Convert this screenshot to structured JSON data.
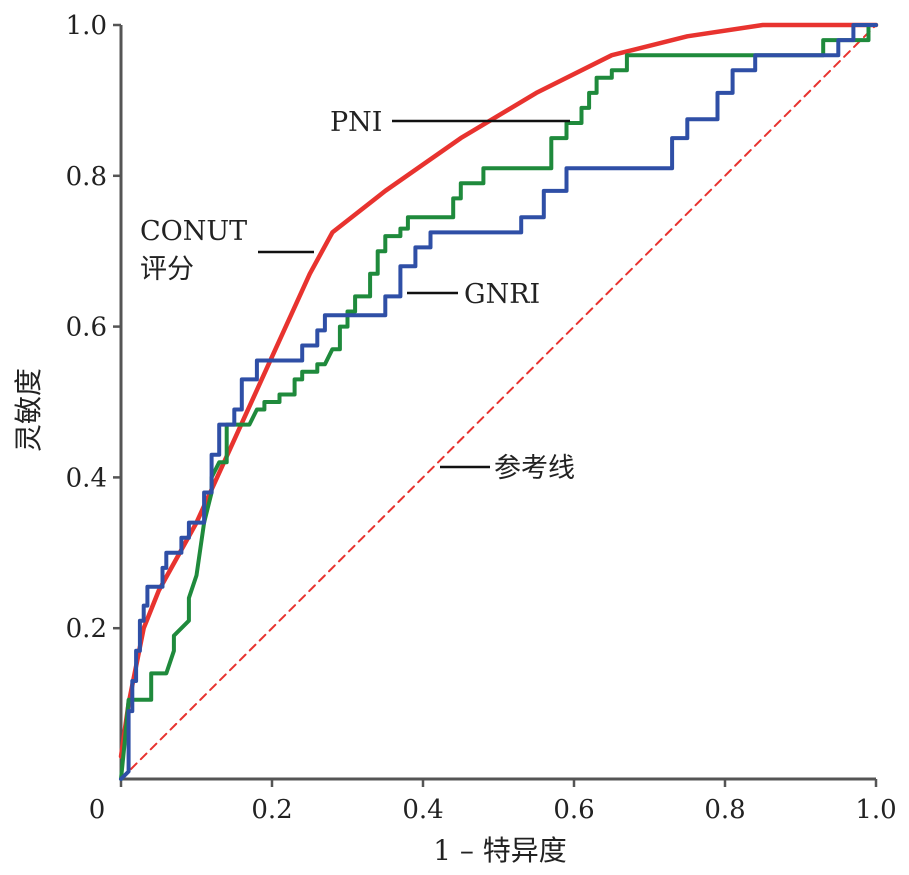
{
  "chart_data": {
    "type": "line",
    "title": "",
    "xlabel": "1 – 特异度",
    "ylabel": "灵敏度",
    "xlim": [
      0,
      1
    ],
    "ylim": [
      0,
      1
    ],
    "x_ticks": [
      "0",
      "0.2",
      "0.4",
      "0.6",
      "0.8",
      "1.0"
    ],
    "y_ticks": [
      "0.2",
      "0.4",
      "0.6",
      "0.8",
      "1.0"
    ],
    "grid": false,
    "series": [
      {
        "name": "CONUT\n评分",
        "color": "#e8332f",
        "style": "solid",
        "points": [
          [
            0,
            0.03
          ],
          [
            0.01,
            0.1
          ],
          [
            0.03,
            0.2
          ],
          [
            0.05,
            0.25
          ],
          [
            0.1,
            0.34
          ],
          [
            0.15,
            0.45
          ],
          [
            0.2,
            0.56
          ],
          [
            0.25,
            0.67
          ],
          [
            0.28,
            0.725
          ],
          [
            0.35,
            0.78
          ],
          [
            0.45,
            0.85
          ],
          [
            0.55,
            0.91
          ],
          [
            0.65,
            0.96
          ],
          [
            0.75,
            0.985
          ],
          [
            0.85,
            1.0
          ],
          [
            1.0,
            1.0
          ]
        ]
      },
      {
        "name": "PNI",
        "color": "#1f8a3c",
        "style": "solid",
        "points": [
          [
            0,
            0.0
          ],
          [
            0.005,
            0.05
          ],
          [
            0.01,
            0.105
          ],
          [
            0.04,
            0.105
          ],
          [
            0.04,
            0.14
          ],
          [
            0.06,
            0.14
          ],
          [
            0.07,
            0.17
          ],
          [
            0.07,
            0.19
          ],
          [
            0.09,
            0.21
          ],
          [
            0.09,
            0.24
          ],
          [
            0.1,
            0.27
          ],
          [
            0.11,
            0.34
          ],
          [
            0.12,
            0.38
          ],
          [
            0.12,
            0.4
          ],
          [
            0.13,
            0.42
          ],
          [
            0.14,
            0.42
          ],
          [
            0.14,
            0.47
          ],
          [
            0.17,
            0.47
          ],
          [
            0.18,
            0.49
          ],
          [
            0.19,
            0.49
          ],
          [
            0.19,
            0.5
          ],
          [
            0.21,
            0.5
          ],
          [
            0.21,
            0.51
          ],
          [
            0.23,
            0.51
          ],
          [
            0.23,
            0.53
          ],
          [
            0.24,
            0.53
          ],
          [
            0.24,
            0.54
          ],
          [
            0.26,
            0.54
          ],
          [
            0.26,
            0.55
          ],
          [
            0.27,
            0.55
          ],
          [
            0.28,
            0.57
          ],
          [
            0.29,
            0.57
          ],
          [
            0.29,
            0.6
          ],
          [
            0.3,
            0.6
          ],
          [
            0.3,
            0.62
          ],
          [
            0.31,
            0.62
          ],
          [
            0.31,
            0.64
          ],
          [
            0.33,
            0.64
          ],
          [
            0.33,
            0.67
          ],
          [
            0.34,
            0.67
          ],
          [
            0.34,
            0.7
          ],
          [
            0.35,
            0.7
          ],
          [
            0.35,
            0.72
          ],
          [
            0.37,
            0.72
          ],
          [
            0.37,
            0.73
          ],
          [
            0.38,
            0.73
          ],
          [
            0.38,
            0.745
          ],
          [
            0.44,
            0.745
          ],
          [
            0.44,
            0.77
          ],
          [
            0.45,
            0.77
          ],
          [
            0.45,
            0.79
          ],
          [
            0.48,
            0.79
          ],
          [
            0.48,
            0.81
          ],
          [
            0.57,
            0.81
          ],
          [
            0.57,
            0.85
          ],
          [
            0.59,
            0.85
          ],
          [
            0.59,
            0.87
          ],
          [
            0.61,
            0.87
          ],
          [
            0.61,
            0.89
          ],
          [
            0.62,
            0.89
          ],
          [
            0.62,
            0.91
          ],
          [
            0.63,
            0.91
          ],
          [
            0.63,
            0.93
          ],
          [
            0.65,
            0.93
          ],
          [
            0.65,
            0.94
          ],
          [
            0.67,
            0.94
          ],
          [
            0.67,
            0.96
          ],
          [
            0.75,
            0.96
          ],
          [
            0.93,
            0.96
          ],
          [
            0.93,
            0.98
          ],
          [
            0.99,
            0.98
          ],
          [
            0.99,
            1.0
          ],
          [
            1.0,
            1.0
          ]
        ]
      },
      {
        "name": "GNRI",
        "color": "#2f4fa6",
        "style": "solid",
        "points": [
          [
            0,
            0.0
          ],
          [
            0.01,
            0.01
          ],
          [
            0.01,
            0.09
          ],
          [
            0.015,
            0.09
          ],
          [
            0.015,
            0.13
          ],
          [
            0.02,
            0.13
          ],
          [
            0.02,
            0.17
          ],
          [
            0.025,
            0.17
          ],
          [
            0.025,
            0.21
          ],
          [
            0.03,
            0.21
          ],
          [
            0.03,
            0.23
          ],
          [
            0.035,
            0.23
          ],
          [
            0.035,
            0.255
          ],
          [
            0.055,
            0.255
          ],
          [
            0.055,
            0.28
          ],
          [
            0.06,
            0.28
          ],
          [
            0.06,
            0.3
          ],
          [
            0.08,
            0.3
          ],
          [
            0.08,
            0.32
          ],
          [
            0.09,
            0.32
          ],
          [
            0.09,
            0.34
          ],
          [
            0.11,
            0.34
          ],
          [
            0.11,
            0.38
          ],
          [
            0.12,
            0.38
          ],
          [
            0.12,
            0.43
          ],
          [
            0.13,
            0.43
          ],
          [
            0.13,
            0.47
          ],
          [
            0.15,
            0.47
          ],
          [
            0.15,
            0.49
          ],
          [
            0.16,
            0.49
          ],
          [
            0.16,
            0.53
          ],
          [
            0.18,
            0.53
          ],
          [
            0.18,
            0.555
          ],
          [
            0.24,
            0.555
          ],
          [
            0.24,
            0.575
          ],
          [
            0.26,
            0.575
          ],
          [
            0.26,
            0.595
          ],
          [
            0.27,
            0.595
          ],
          [
            0.27,
            0.615
          ],
          [
            0.35,
            0.615
          ],
          [
            0.35,
            0.64
          ],
          [
            0.37,
            0.64
          ],
          [
            0.37,
            0.68
          ],
          [
            0.39,
            0.68
          ],
          [
            0.39,
            0.705
          ],
          [
            0.41,
            0.705
          ],
          [
            0.41,
            0.725
          ],
          [
            0.53,
            0.725
          ],
          [
            0.53,
            0.745
          ],
          [
            0.56,
            0.745
          ],
          [
            0.56,
            0.78
          ],
          [
            0.59,
            0.78
          ],
          [
            0.59,
            0.81
          ],
          [
            0.73,
            0.81
          ],
          [
            0.73,
            0.85
          ],
          [
            0.75,
            0.85
          ],
          [
            0.75,
            0.875
          ],
          [
            0.79,
            0.875
          ],
          [
            0.79,
            0.91
          ],
          [
            0.81,
            0.91
          ],
          [
            0.81,
            0.94
          ],
          [
            0.84,
            0.94
          ],
          [
            0.84,
            0.96
          ],
          [
            0.95,
            0.96
          ],
          [
            0.95,
            0.98
          ],
          [
            0.97,
            0.98
          ],
          [
            0.97,
            1.0
          ],
          [
            1.0,
            1.0
          ]
        ]
      },
      {
        "name": "参考线",
        "color": "#e8332f",
        "style": "dashed",
        "points": [
          [
            0,
            0
          ],
          [
            1,
            1
          ]
        ]
      }
    ],
    "annotations": [
      {
        "text": "PNI",
        "at": [
          0.6,
          0.87
        ]
      },
      {
        "text": "CONUT\n评分",
        "at": [
          0.27,
          0.7
        ]
      },
      {
        "text": "GNRI",
        "at": [
          0.38,
          0.645
        ]
      },
      {
        "text": "参考线",
        "at": [
          0.42,
          0.415
        ]
      }
    ]
  }
}
